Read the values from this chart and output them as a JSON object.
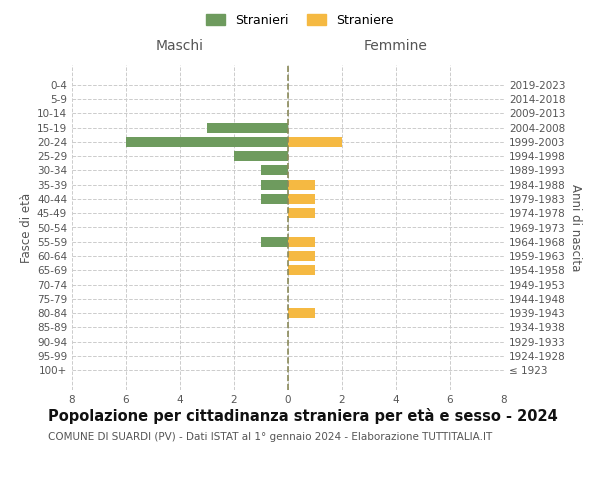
{
  "age_groups": [
    "100+",
    "95-99",
    "90-94",
    "85-89",
    "80-84",
    "75-79",
    "70-74",
    "65-69",
    "60-64",
    "55-59",
    "50-54",
    "45-49",
    "40-44",
    "35-39",
    "30-34",
    "25-29",
    "20-24",
    "15-19",
    "10-14",
    "5-9",
    "0-4"
  ],
  "birth_years": [
    "≤ 1923",
    "1924-1928",
    "1929-1933",
    "1934-1938",
    "1939-1943",
    "1944-1948",
    "1949-1953",
    "1954-1958",
    "1959-1963",
    "1964-1968",
    "1969-1973",
    "1974-1978",
    "1979-1983",
    "1984-1988",
    "1989-1993",
    "1994-1998",
    "1999-2003",
    "2004-2008",
    "2009-2013",
    "2014-2018",
    "2019-2023"
  ],
  "males": [
    0,
    0,
    0,
    0,
    0,
    0,
    0,
    0,
    0,
    1,
    0,
    0,
    1,
    1,
    1,
    2,
    6,
    3,
    0,
    0,
    0
  ],
  "females": [
    0,
    0,
    0,
    0,
    1,
    0,
    0,
    1,
    1,
    1,
    0,
    1,
    1,
    1,
    0,
    0,
    2,
    0,
    0,
    0,
    0
  ],
  "male_color": "#6e9b5e",
  "female_color": "#f5b942",
  "center_line_color": "#8a8a5a",
  "grid_color": "#cccccc",
  "background_color": "#ffffff",
  "title": "Popolazione per cittadinanza straniera per età e sesso - 2024",
  "subtitle": "COMUNE DI SUARDI (PV) - Dati ISTAT al 1° gennaio 2024 - Elaborazione TUTTITALIA.IT",
  "ylabel_left": "Fasce di età",
  "ylabel_right": "Anni di nascita",
  "xlabel_left": "Maschi",
  "xlabel_right": "Femmine",
  "legend_stranieri": "Stranieri",
  "legend_straniere": "Straniere",
  "xlim": 8,
  "bar_height": 0.7,
  "fontsize_title": 10.5,
  "fontsize_subtitle": 7.5,
  "fontsize_maschi_femmine": 10,
  "fontsize_ticks": 7.5,
  "fontsize_legend": 9,
  "fontsize_axis_label": 8.5
}
